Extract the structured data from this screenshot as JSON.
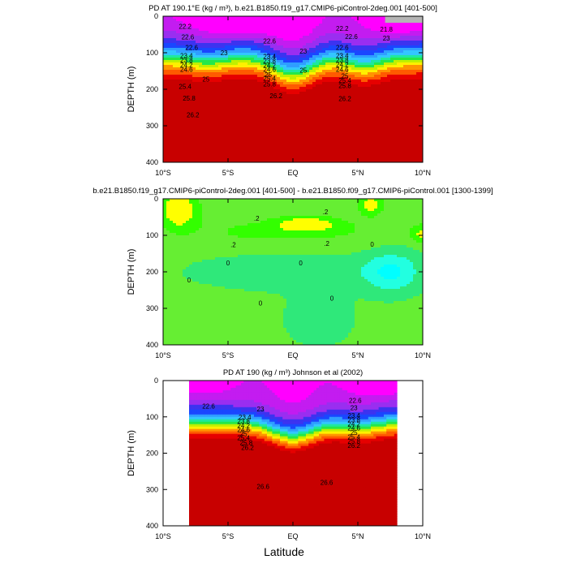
{
  "figure": {
    "xlabel": "Latitude"
  },
  "chart_data": [
    {
      "type": "heatmap",
      "title": "PD AT 190.1°E (kg / m³), b.e21.B1850.f19_g17.CMIP6-piControl-2deg.001 [401-500]",
      "ylabel": "DEPTH (m)",
      "xlim": [
        -10,
        10
      ],
      "ylim": [
        400,
        0
      ],
      "x_ticks": [
        -10,
        -5,
        0,
        5,
        10
      ],
      "x_tick_labels": [
        "10°S",
        "5°S",
        "EQ",
        "5°N",
        "10°N"
      ],
      "y_ticks": [
        0,
        100,
        200,
        300,
        400
      ],
      "y_tick_labels": [
        "0",
        "100",
        "200",
        "300",
        "400"
      ],
      "x_data_min": -10,
      "x_data_max": 10,
      "levels": [
        21.4,
        21.8,
        22.2,
        22.6,
        23.0,
        23.4,
        23.8,
        24.2,
        24.6,
        25.0,
        25.4,
        25.8,
        26.2,
        26.6
      ],
      "colors": [
        "#ff00ff",
        "#e600f5",
        "#c31cf0",
        "#9a2ef0",
        "#6e37ee",
        "#3c33f0",
        "#1a46ff",
        "#1e6cff",
        "#2f9eff",
        "#33c6ff",
        "#22e6e6",
        "#1ee8a0",
        "#24e84a",
        "#74f000",
        "#c0f000",
        "#fff000",
        "#ffc800",
        "#ff9400",
        "#ff5a00",
        "#ff2800",
        "#e60000",
        "#c80000"
      ],
      "field": "model",
      "contour_labels": [
        {
          "x": -8.3,
          "y": 28,
          "text": "22.2"
        },
        {
          "x": -8.1,
          "y": 57,
          "text": "22.6"
        },
        {
          "x": -7.8,
          "y": 85,
          "text": "22.6"
        },
        {
          "x": -8.2,
          "y": 108,
          "text": "23.4"
        },
        {
          "x": -8.2,
          "y": 120,
          "text": "23.8"
        },
        {
          "x": -8.2,
          "y": 133,
          "text": "24.2"
        },
        {
          "x": -8.2,
          "y": 146,
          "text": "24.6"
        },
        {
          "x": -6.7,
          "y": 172,
          "text": "25"
        },
        {
          "x": -8.3,
          "y": 192,
          "text": "25.4"
        },
        {
          "x": -8.0,
          "y": 224,
          "text": "25.8"
        },
        {
          "x": -7.7,
          "y": 270,
          "text": "26.2"
        },
        {
          "x": -1.8,
          "y": 68,
          "text": "22.6"
        },
        {
          "x": -5.3,
          "y": 100,
          "text": "23"
        },
        {
          "x": -1.8,
          "y": 110,
          "text": "23.4"
        },
        {
          "x": -1.8,
          "y": 122,
          "text": "23.8"
        },
        {
          "x": -1.8,
          "y": 134,
          "text": "24.2"
        },
        {
          "x": -1.8,
          "y": 145,
          "text": "24.6"
        },
        {
          "x": -1.8,
          "y": 170,
          "text": "25.4"
        },
        {
          "x": -1.8,
          "y": 185,
          "text": "25.8"
        },
        {
          "x": -1.3,
          "y": 218,
          "text": "26.2"
        },
        {
          "x": -1.9,
          "y": 160,
          "text": "25"
        },
        {
          "x": 0.8,
          "y": 95,
          "text": "23"
        },
        {
          "x": 0.8,
          "y": 148,
          "text": "25"
        },
        {
          "x": 3.8,
          "y": 33,
          "text": "22.2"
        },
        {
          "x": 3.8,
          "y": 85,
          "text": "22.6"
        },
        {
          "x": 3.8,
          "y": 108,
          "text": "23.4"
        },
        {
          "x": 3.8,
          "y": 120,
          "text": "23.8"
        },
        {
          "x": 3.8,
          "y": 132,
          "text": "24.2"
        },
        {
          "x": 3.8,
          "y": 145,
          "text": "24.6"
        },
        {
          "x": 4.0,
          "y": 163,
          "text": "25"
        },
        {
          "x": 4.0,
          "y": 175,
          "text": "25.4"
        },
        {
          "x": 4.0,
          "y": 190,
          "text": "25.8"
        },
        {
          "x": 4.0,
          "y": 225,
          "text": "26.2"
        },
        {
          "x": 4.5,
          "y": 55,
          "text": "22.6"
        },
        {
          "x": 7.2,
          "y": 60,
          "text": "23"
        },
        {
          "x": 7.2,
          "y": 35,
          "text": "21.8"
        }
      ]
    },
    {
      "type": "heatmap",
      "title": "b.e21.B1850.f19_g17.CMIP6-piControl-2deg.001 [401-500] - b.e21.B1850.f09_g17.CMIP6-piControl.001 [1300-1399]",
      "ylabel": "DEPTH (m)",
      "xlim": [
        -10,
        10
      ],
      "ylim": [
        400,
        0
      ],
      "x_ticks": [
        -10,
        -5,
        0,
        5,
        10
      ],
      "x_tick_labels": [
        "10°S",
        "5°S",
        "EQ",
        "5°N",
        "10°N"
      ],
      "y_ticks": [
        0,
        100,
        200,
        300,
        400
      ],
      "y_tick_labels": [
        "0",
        "100",
        "200",
        "300",
        "400"
      ],
      "x_data_min": -10,
      "x_data_max": 10,
      "levels": [
        -0.4,
        -0.2,
        0,
        0.2,
        0.4
      ],
      "colors": [
        "#00ffff",
        "#22ffe0",
        "#2fe87a",
        "#66ee33",
        "#33ff00",
        "#ffff00"
      ],
      "field": "diff",
      "contour_labels": [
        {
          "x": 2.5,
          "y": 35,
          "text": ".2"
        },
        {
          "x": -2.8,
          "y": 53,
          "text": ".2"
        },
        {
          "x": -4.6,
          "y": 125,
          "text": ".2"
        },
        {
          "x": 2.6,
          "y": 122,
          "text": ".2"
        },
        {
          "x": 6.1,
          "y": 124,
          "text": "0"
        },
        {
          "x": -5.0,
          "y": 175,
          "text": "0"
        },
        {
          "x": 0.6,
          "y": 175,
          "text": "0"
        },
        {
          "x": -8.0,
          "y": 222,
          "text": "0"
        },
        {
          "x": -2.5,
          "y": 285,
          "text": "0"
        },
        {
          "x": 3.0,
          "y": 272,
          "text": "0"
        }
      ]
    },
    {
      "type": "heatmap",
      "title": "PD AT 190 (kg / m³) Johnson et al (2002)",
      "ylabel": "DEPTH (m)",
      "xlim": [
        -10,
        10
      ],
      "ylim": [
        400,
        0
      ],
      "x_ticks": [
        -10,
        -5,
        0,
        5,
        10
      ],
      "x_tick_labels": [
        "10°S",
        "5°S",
        "EQ",
        "5°N",
        "10°N"
      ],
      "y_ticks": [
        0,
        100,
        200,
        300,
        400
      ],
      "y_tick_labels": [
        "0",
        "100",
        "200",
        "300",
        "400"
      ],
      "x_data_min": -8,
      "x_data_max": 8,
      "levels": [
        21.4,
        21.8,
        22.2,
        22.6,
        23.0,
        23.4,
        23.8,
        24.2,
        24.6,
        25.0,
        25.4,
        25.8,
        26.2,
        26.6
      ],
      "colors": [
        "#ff00ff",
        "#e600f5",
        "#c31cf0",
        "#9a2ef0",
        "#6e37ee",
        "#3c33f0",
        "#1a46ff",
        "#1e6cff",
        "#2f9eff",
        "#33c6ff",
        "#22e6e6",
        "#1ee8a0",
        "#24e84a",
        "#74f000",
        "#c0f000",
        "#fff000",
        "#ffc800",
        "#ff9400",
        "#ff5a00",
        "#ff2800",
        "#e60000",
        "#c80000"
      ],
      "field": "obs",
      "contour_labels": [
        {
          "x": -6.5,
          "y": 70,
          "text": "22.6"
        },
        {
          "x": -2.5,
          "y": 78,
          "text": "23"
        },
        {
          "x": -3.7,
          "y": 100,
          "text": "23.4"
        },
        {
          "x": -3.8,
          "y": 112,
          "text": "23.8"
        },
        {
          "x": -3.8,
          "y": 124,
          "text": "24.2"
        },
        {
          "x": -3.8,
          "y": 135,
          "text": "24.6"
        },
        {
          "x": -3.8,
          "y": 146,
          "text": "25"
        },
        {
          "x": -3.8,
          "y": 158,
          "text": "25.4"
        },
        {
          "x": -3.6,
          "y": 171,
          "text": "25.8"
        },
        {
          "x": -3.5,
          "y": 184,
          "text": "26.2"
        },
        {
          "x": -2.3,
          "y": 292,
          "text": "26.6"
        },
        {
          "x": 4.8,
          "y": 55,
          "text": "22.6"
        },
        {
          "x": 4.7,
          "y": 75,
          "text": "23"
        },
        {
          "x": 4.7,
          "y": 96,
          "text": "23.4"
        },
        {
          "x": 4.7,
          "y": 108,
          "text": "23.8"
        },
        {
          "x": 4.7,
          "y": 119,
          "text": "24.2"
        },
        {
          "x": 4.7,
          "y": 131,
          "text": "24.6"
        },
        {
          "x": 4.7,
          "y": 143,
          "text": "25"
        },
        {
          "x": 4.7,
          "y": 155,
          "text": "25.4"
        },
        {
          "x": 4.7,
          "y": 167,
          "text": "25.8"
        },
        {
          "x": 4.7,
          "y": 179,
          "text": "26.2"
        },
        {
          "x": 2.6,
          "y": 280,
          "text": "26.6"
        }
      ]
    }
  ]
}
